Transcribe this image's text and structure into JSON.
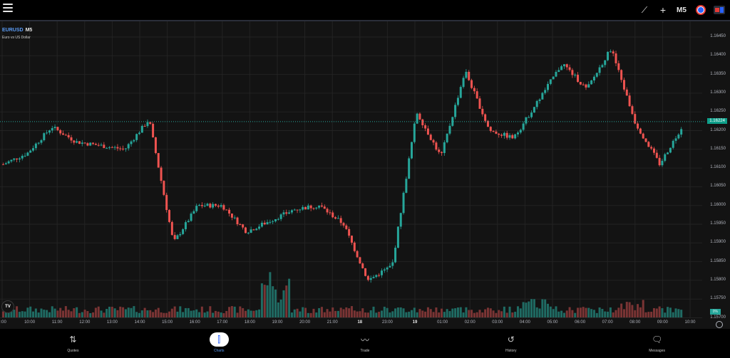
{
  "topbar": {
    "menu_icon": "hamburger-menu-icon",
    "tools": [
      {
        "name": "draw-line-icon",
        "glyph": "⟋"
      },
      {
        "name": "crosshair-icon",
        "glyph": "+"
      },
      {
        "name": "timeframe-button",
        "glyph": "M5"
      },
      {
        "name": "clock-icon",
        "glyph": "◷"
      },
      {
        "name": "layout-icon",
        "glyph": "■"
      }
    ],
    "timeframe": "M5"
  },
  "chart": {
    "symbol": "EURUSD",
    "timeframe": "M5",
    "description": "Euro vs US Dollar",
    "last_price": "1.16224",
    "volume_pct": "0%",
    "colors": {
      "up": "#26a69a",
      "down": "#ef5350",
      "background": "#131313",
      "grid": "#232323",
      "last_price_bg": "#0e9f8a",
      "symbol": "#5b9cf6"
    },
    "price_axis": [
      "1.16450",
      "1.16400",
      "1.16350",
      "1.16300",
      "1.16250",
      "1.16200",
      "1.16150",
      "1.16100",
      "1.16050",
      "1.16000",
      "1.15950",
      "1.15900",
      "1.15850",
      "1.15800",
      "1.15750",
      "1.15700"
    ],
    "time_axis": [
      "9:00",
      "10:00",
      "11:00",
      "12:00",
      "13:00",
      "14:00",
      "15:00",
      "16:00",
      "17:00",
      "18:00",
      "19:00",
      "20:00",
      "21:00",
      "18",
      "23:00",
      "19",
      "01:00",
      "02:00",
      "03:00",
      "04:00",
      "05:00",
      "06:00",
      "07:00",
      "08:00",
      "09:00",
      "10:00"
    ]
  },
  "chart_data": {
    "type": "candlestick",
    "title": "EURUSD M5 — Euro vs US Dollar",
    "ylim": [
      1.157,
      1.1647
    ],
    "last_price": 1.16224,
    "approx_close_path": [
      {
        "time": "09:00",
        "price": 1.1611
      },
      {
        "time": "10:00",
        "price": 1.1614
      },
      {
        "time": "11:00",
        "price": 1.1621
      },
      {
        "time": "12:00",
        "price": 1.1617
      },
      {
        "time": "13:00",
        "price": 1.1616
      },
      {
        "time": "14:00",
        "price": 1.1615
      },
      {
        "time": "15:00",
        "price": 1.1623
      },
      {
        "time": "15:30",
        "price": 1.159
      },
      {
        "time": "16:00",
        "price": 1.16
      },
      {
        "time": "17:00",
        "price": 1.16
      },
      {
        "time": "18:00",
        "price": 1.1593
      },
      {
        "time": "19:00",
        "price": 1.1596
      },
      {
        "time": "20:00",
        "price": 1.1599
      },
      {
        "time": "21:00",
        "price": 1.16
      },
      {
        "time": "22:00",
        "price": 1.1595
      },
      {
        "time": "22:30",
        "price": 1.158
      },
      {
        "time": "23:00",
        "price": 1.1584
      },
      {
        "time": "23:30",
        "price": 1.1625
      },
      {
        "time": "00:00",
        "price": 1.1613
      },
      {
        "time": "01:00",
        "price": 1.1636
      },
      {
        "time": "02:00",
        "price": 1.162
      },
      {
        "time": "03:00",
        "price": 1.1618
      },
      {
        "time": "04:00",
        "price": 1.1628
      },
      {
        "time": "05:00",
        "price": 1.1638
      },
      {
        "time": "06:00",
        "price": 1.1631
      },
      {
        "time": "07:00",
        "price": 1.1642
      },
      {
        "time": "08:00",
        "price": 1.1622
      },
      {
        "time": "09:00",
        "price": 1.1611
      },
      {
        "time": "09:30",
        "price": 1.1622
      }
    ]
  },
  "bottom_nav": [
    {
      "label": "Quotes",
      "icon": "quotes-arrows-icon",
      "glyph": "⇅",
      "active": false
    },
    {
      "label": "Charts",
      "icon": "charts-candles-icon",
      "glyph": "⫿",
      "active": true
    },
    {
      "label": "Trade",
      "icon": "trade-line-icon",
      "glyph": "〰",
      "active": false
    },
    {
      "label": "History",
      "icon": "history-icon",
      "glyph": "↺",
      "active": false
    },
    {
      "label": "Messages",
      "icon": "messages-icon",
      "glyph": "🗨",
      "active": false
    }
  ]
}
